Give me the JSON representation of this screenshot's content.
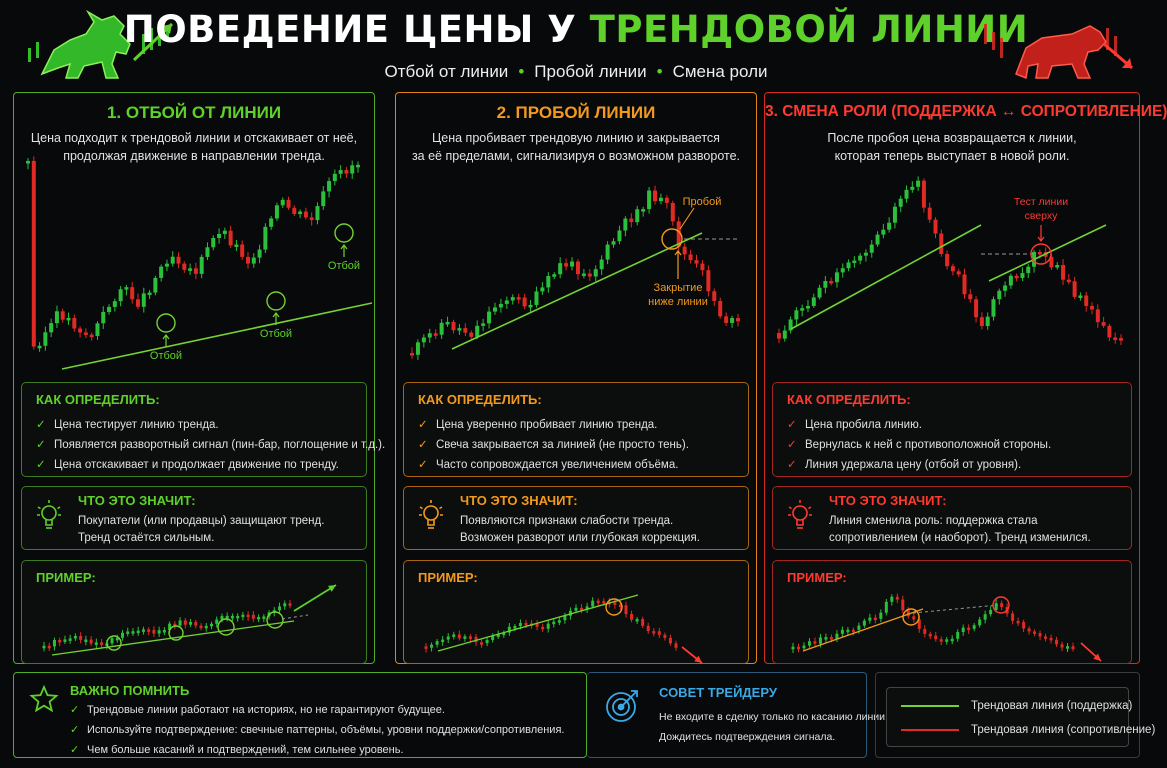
{
  "header": {
    "title_main": "ПОВЕДЕНИЕ ЦЕНЫ У ",
    "title_highlight": "ТРЕНДОВОЙ ЛИНИИ",
    "subtitle": [
      "Отбой от линии",
      "Пробой линии",
      "Смена роли"
    ],
    "separator": "•"
  },
  "colors": {
    "green": "#5fd12b",
    "orange": "#f39a1e",
    "red": "#ff3a30",
    "blue": "#3ba9e6",
    "bull_candle": "#2bc03b",
    "bear_candle": "#e02a23"
  },
  "panels": [
    {
      "title": "1. ОТБОЙ ОТ ЛИНИИ",
      "desc": [
        "Цена подходит к трендовой линии и отскакивает от неё,",
        "продолжая движение в направлении тренда."
      ],
      "labels": {
        "bounce": "Отбой"
      },
      "how_title": "КАК ОПРЕДЕЛИТЬ:",
      "how": [
        "Цена тестирует линию тренда.",
        "Появляется разворотный сигнал (пин-бар, поглощение и т.д.).",
        "Цена отскакивает и продолжает движение по тренду."
      ],
      "meaning_title": "ЧТО ЭТО ЗНАЧИТ:",
      "meaning": [
        "Покупатели (или продавцы) защищают тренд.",
        "Тренд остаётся сильным."
      ],
      "example_title": "ПРИМЕР:"
    },
    {
      "title": "2. ПРОБОЙ ЛИНИИ",
      "desc": [
        "Цена пробивает трендовую линию и закрывается",
        "за её пределами, сигнализируя о возможном развороте."
      ],
      "labels": {
        "breakout": "Пробой",
        "close_below": [
          "Закрытие",
          "ниже линии"
        ]
      },
      "how_title": "КАК ОПРЕДЕЛИТЬ:",
      "how": [
        "Цена уверенно пробивает линию тренда.",
        "Свеча закрывается за линией (не просто тень).",
        "Часто сопровождается увеличением объёма."
      ],
      "meaning_title": "ЧТО ЭТО ЗНАЧИТ:",
      "meaning": [
        "Появляются признаки слабости тренда.",
        "Возможен разворот или глубокая коррекция."
      ],
      "example_title": "ПРИМЕР:"
    },
    {
      "title": "3. СМЕНА РОЛИ (ПОДДЕРЖКА ↔ СОПРОТИВЛЕНИЕ)",
      "desc": [
        "После пробоя цена возвращается к линии,",
        "которая теперь выступает в новой роли."
      ],
      "labels": {
        "retest": [
          "Тест линии",
          "сверху"
        ]
      },
      "how_title": "КАК ОПРЕДЕЛИТЬ:",
      "how": [
        "Цена пробила линию.",
        "Вернулась к ней с противоположной стороны.",
        "Линия удержала цену (отбой от уровня)."
      ],
      "meaning_title": "ЧТО ЭТО ЗНАЧИТ:",
      "meaning": [
        "Линия сменила роль: поддержка стала",
        "сопротивлением (и наоборот). Тренд изменился."
      ],
      "example_title": "ПРИМЕР:"
    }
  ],
  "bottom": {
    "remember_title": "ВАЖНО ПОМНИТЬ",
    "remember": [
      "Трендовые линии работают на историях, но не гарантируют будущее.",
      "Используйте подтверждение: свечные паттерны, объёмы, уровни поддержки/сопротивления.",
      "Чем больше касаний и подтверждений, тем сильнее уровень."
    ],
    "tip_title": "СОВЕТ ТРЕЙДЕРУ",
    "tip": [
      "Не входите в сделку только по касанию линии.",
      "Дождитесь подтверждения сигнала."
    ],
    "legend": [
      {
        "label": "Трендовая линия (поддержка)",
        "color": "#74d234"
      },
      {
        "label": "Трендовая линия (сопротивление)",
        "color": "#e02a23"
      }
    ]
  }
}
